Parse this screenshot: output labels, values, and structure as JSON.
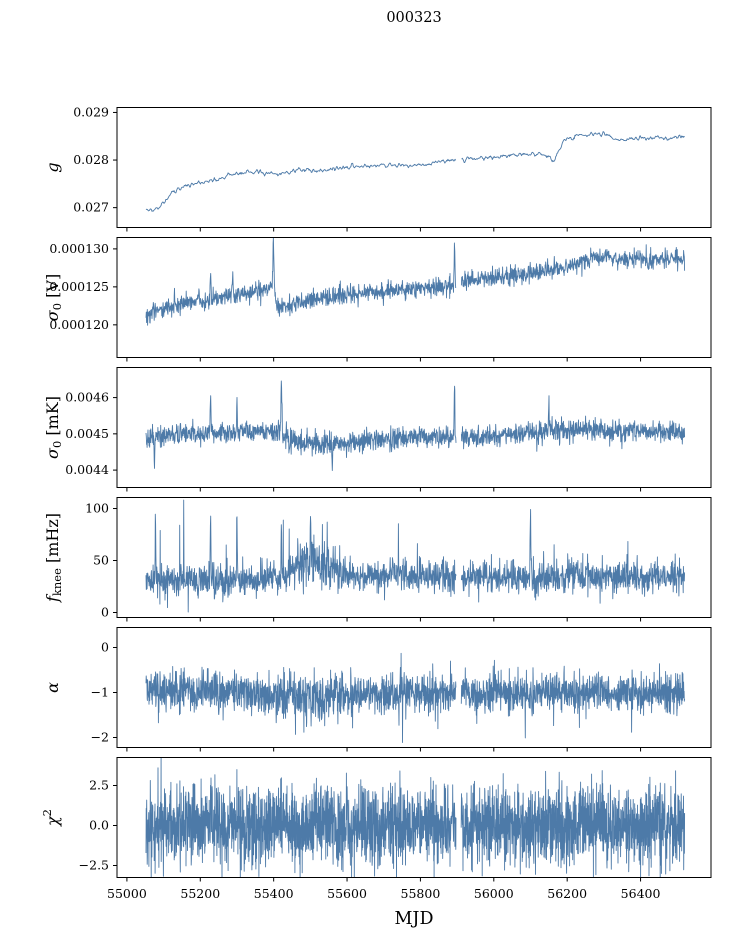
{
  "chart_data": {
    "type": "line",
    "title": "000323",
    "xlabel": "MJD",
    "line_color": "#4d7aa8",
    "grid": false,
    "legend": "none",
    "xlim": [
      54973,
      56592
    ],
    "x_data_range": [
      55052,
      56520
    ],
    "xticks": [
      55000,
      55200,
      55400,
      55600,
      55800,
      56000,
      56200,
      56400
    ],
    "xtick_labels": [
      "55000",
      "55200",
      "55400",
      "55600",
      "55800",
      "56000",
      "56200",
      "56400"
    ],
    "gaps": [
      [
        55897,
        55911
      ]
    ],
    "panels": [
      {
        "name": "g",
        "ylabel": {
          "base": "g",
          "sub": "",
          "sup": "",
          "unit": ""
        },
        "ylim": [
          0.026583,
          0.029104
        ],
        "yticks": [
          0.027,
          0.028,
          0.029
        ],
        "ytick_labels": [
          "0.027",
          "0.028",
          "0.029"
        ],
        "points": 900,
        "noise": 4.2e-05,
        "smooth": 1,
        "trend": [
          [
            55052,
            0.027
          ],
          [
            55075,
            0.02693
          ],
          [
            55110,
            0.0272
          ],
          [
            55150,
            0.02744
          ],
          [
            55200,
            0.02752
          ],
          [
            55250,
            0.02762
          ],
          [
            55300,
            0.02772
          ],
          [
            55350,
            0.02776
          ],
          [
            55420,
            0.02772
          ],
          [
            55480,
            0.02778
          ],
          [
            55550,
            0.0278
          ],
          [
            55620,
            0.02786
          ],
          [
            55700,
            0.0279
          ],
          [
            55780,
            0.02788
          ],
          [
            55850,
            0.02796
          ],
          [
            55920,
            0.028
          ],
          [
            56000,
            0.02806
          ],
          [
            56080,
            0.02812
          ],
          [
            56140,
            0.02812
          ],
          [
            56165,
            0.02798
          ],
          [
            56190,
            0.0284
          ],
          [
            56240,
            0.02852
          ],
          [
            56290,
            0.02856
          ],
          [
            56340,
            0.02842
          ],
          [
            56390,
            0.02846
          ],
          [
            56440,
            0.02848
          ],
          [
            56480,
            0.02844
          ],
          [
            56520,
            0.02852
          ]
        ],
        "spikes": []
      },
      {
        "name": "sigma0_V",
        "ylabel": {
          "base": "σ",
          "sub": "0",
          "sup": "",
          "unit": " [V]"
        },
        "ylim": [
          0.0001157,
          0.0001315
        ],
        "yticks": [
          0.00012,
          0.000125,
          0.00013
        ],
        "ytick_labels": [
          "0.000120",
          "0.000125",
          "0.000130"
        ],
        "points": 1700,
        "noise": 6e-07,
        "trend": [
          [
            55052,
            0.0001213
          ],
          [
            55100,
            0.0001221
          ],
          [
            55150,
            0.0001227
          ],
          [
            55200,
            0.0001232
          ],
          [
            55250,
            0.0001236
          ],
          [
            55300,
            0.000124
          ],
          [
            55350,
            0.0001243
          ],
          [
            55396,
            0.0001251
          ],
          [
            55402,
            0.0001251
          ],
          [
            55408,
            0.0001222
          ],
          [
            55480,
            0.0001231
          ],
          [
            55560,
            0.0001237
          ],
          [
            55640,
            0.0001241
          ],
          [
            55720,
            0.0001245
          ],
          [
            55800,
            0.0001248
          ],
          [
            55860,
            0.000125
          ],
          [
            55896,
            0.0001252
          ],
          [
            55912,
            0.0001258
          ],
          [
            55980,
            0.000126
          ],
          [
            56060,
            0.0001265
          ],
          [
            56140,
            0.0001271
          ],
          [
            56200,
            0.0001278
          ],
          [
            56260,
            0.0001286
          ],
          [
            56310,
            0.000129
          ],
          [
            56360,
            0.0001287
          ],
          [
            56420,
            0.0001286
          ],
          [
            56470,
            0.0001288
          ],
          [
            56520,
            0.0001287
          ]
        ],
        "spikes": [
          [
            55228,
            4.2e-06,
            2.5
          ],
          [
            55288,
            3.2e-06,
            2.5
          ],
          [
            55399,
            7e-06,
            3
          ],
          [
            55893,
            6.5e-06,
            2.5
          ],
          [
            55130,
            2e-06,
            2
          ]
        ]
      },
      {
        "name": "sigma0_mK",
        "ylabel": {
          "base": "σ",
          "sub": "0",
          "sup": "",
          "unit": " [mK]"
        },
        "ylim": [
          0.004352,
          0.004683
        ],
        "yticks": [
          0.0044,
          0.0045,
          0.0046
        ],
        "ytick_labels": [
          "0.0044",
          "0.0045",
          "0.0046"
        ],
        "points": 1900,
        "noise": 1.35e-05,
        "noise_scale": [
          [
            55052,
            1.0
          ],
          [
            55400,
            1.0
          ],
          [
            55430,
            1.5
          ],
          [
            55470,
            1.2
          ],
          [
            55520,
            1.0
          ],
          [
            56100,
            1.0
          ],
          [
            56160,
            1.3
          ],
          [
            56230,
            1.2
          ],
          [
            56300,
            1.0
          ],
          [
            56520,
            1.0
          ]
        ],
        "trend": [
          [
            55052,
            0.00449
          ],
          [
            55120,
            0.004498
          ],
          [
            55200,
            0.0045
          ],
          [
            55280,
            0.004505
          ],
          [
            55360,
            0.004508
          ],
          [
            55420,
            0.004505
          ],
          [
            55450,
            0.00448
          ],
          [
            55520,
            0.00447
          ],
          [
            55600,
            0.004475
          ],
          [
            55680,
            0.004483
          ],
          [
            55760,
            0.004487
          ],
          [
            55840,
            0.004488
          ],
          [
            55900,
            0.00449
          ],
          [
            55980,
            0.004495
          ],
          [
            56060,
            0.004498
          ],
          [
            56130,
            0.004505
          ],
          [
            56170,
            0.004515
          ],
          [
            56220,
            0.004508
          ],
          [
            56270,
            0.004512
          ],
          [
            56330,
            0.004505
          ],
          [
            56400,
            0.004508
          ],
          [
            56460,
            0.004505
          ],
          [
            56520,
            0.004508
          ]
        ],
        "spikes": [
          [
            55075,
            -9e-05,
            2
          ],
          [
            55228,
            0.00012,
            2
          ],
          [
            55300,
            0.0001,
            2
          ],
          [
            55421,
            0.00018,
            2.5
          ],
          [
            55893,
            0.00018,
            2
          ],
          [
            56150,
            7e-05,
            2
          ],
          [
            55560,
            -6e-05,
            2
          ]
        ]
      },
      {
        "name": "f_knee",
        "ylabel": {
          "base": "f",
          "sub": "knee",
          "sup": "",
          "unit": " [mHz]"
        },
        "ylim": [
          -4.8,
          110.6
        ],
        "yticks": [
          0,
          50,
          100
        ],
        "ytick_labels": [
          "0",
          "50",
          "100"
        ],
        "points": 1900,
        "noise": 7.5,
        "noise_scale": [
          [
            55052,
            1.0
          ],
          [
            55440,
            1.0
          ],
          [
            55480,
            1.7
          ],
          [
            55540,
            1.5
          ],
          [
            55610,
            1.0
          ],
          [
            56520,
            1.0
          ]
        ],
        "tail": {
          "prob": 0.05,
          "amp": 14,
          "sign": 1
        },
        "trend": [
          [
            55052,
            32
          ],
          [
            55150,
            30
          ],
          [
            55250,
            31
          ],
          [
            55350,
            30
          ],
          [
            55430,
            33
          ],
          [
            55470,
            46
          ],
          [
            55510,
            47
          ],
          [
            55560,
            40
          ],
          [
            55630,
            35
          ],
          [
            55720,
            36
          ],
          [
            55800,
            34
          ],
          [
            55880,
            33
          ],
          [
            55960,
            32
          ],
          [
            56040,
            33
          ],
          [
            56120,
            33
          ],
          [
            56200,
            34
          ],
          [
            56280,
            34
          ],
          [
            56360,
            33
          ],
          [
            56440,
            34
          ],
          [
            56520,
            33
          ]
        ],
        "spikes": [
          [
            55078,
            70,
            2
          ],
          [
            55228,
            74,
            2
          ],
          [
            55300,
            66,
            2
          ],
          [
            55421,
            60,
            2
          ],
          [
            55500,
            42,
            2
          ],
          [
            56100,
            70,
            2
          ]
        ]
      },
      {
        "name": "alpha",
        "ylabel": {
          "base": "α",
          "sub": "",
          "sup": "",
          "unit": ""
        },
        "ylim": [
          -2.222,
          0.444
        ],
        "yticks": [
          0,
          -1,
          -2
        ],
        "ytick_labels": [
          "0",
          "−1",
          "−2"
        ],
        "points": 2300,
        "noise": 0.2,
        "noise_scale": [
          [
            55052,
            1.0
          ],
          [
            55180,
            1.15
          ],
          [
            55350,
            1.0
          ],
          [
            55430,
            1.25
          ],
          [
            55520,
            1.25
          ],
          [
            55600,
            1.0
          ],
          [
            55800,
            1.1
          ],
          [
            55900,
            1.0
          ],
          [
            56100,
            1.05
          ],
          [
            56520,
            1.0
          ]
        ],
        "tail": {
          "prob": 0.03,
          "amp": 0.3,
          "sign": -1
        },
        "trend": [
          [
            55052,
            -1.0
          ],
          [
            55150,
            -0.97
          ],
          [
            55250,
            -0.95
          ],
          [
            55350,
            -1.0
          ],
          [
            55430,
            -1.08
          ],
          [
            55520,
            -1.1
          ],
          [
            55600,
            -1.05
          ],
          [
            55700,
            -1.0
          ],
          [
            55800,
            -1.02
          ],
          [
            55900,
            -0.98
          ],
          [
            56000,
            -1.0
          ],
          [
            56100,
            -1.0
          ],
          [
            56200,
            -1.0
          ],
          [
            56300,
            -1.0
          ],
          [
            56400,
            -1.0
          ],
          [
            56520,
            -1.0
          ]
        ],
        "spikes": [
          [
            55250,
            -0.5,
            2
          ],
          [
            56105,
            -0.55,
            2
          ]
        ]
      },
      {
        "name": "chi2",
        "ylabel": {
          "base": "χ",
          "sub": "",
          "sup": "2",
          "unit": ""
        },
        "ylim": [
          -3.25,
          4.25
        ],
        "yticks": [
          2.5,
          0.0,
          -2.5
        ],
        "ytick_labels": [
          "2.5",
          "0.0",
          "−2.5"
        ],
        "points": 3000,
        "noise": 1.2,
        "tail": {
          "prob": 0.02,
          "amp": 0.6,
          "sign": 0
        },
        "trend": [
          [
            55052,
            0.0
          ],
          [
            56520,
            0.0
          ]
        ],
        "spikes": [
          [
            55600,
            3.0,
            2
          ]
        ]
      }
    ]
  }
}
